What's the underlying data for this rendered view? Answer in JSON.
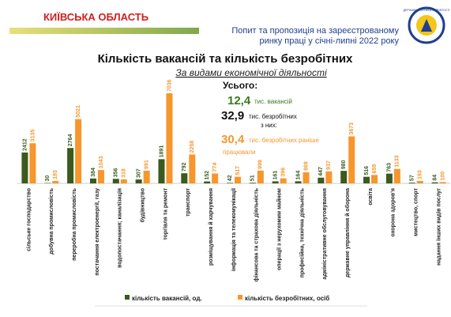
{
  "header": {
    "region": "КИЇВСЬКА ОБЛАСТЬ",
    "report_line1": "Попит та пропозиція на зареєстрованому",
    "report_line2": "ринку праці у  січні-липні 2022 року",
    "logo_text": "ДЕРЖАВНА СЛУЖБА ЗАЙНЯТОСТІ"
  },
  "summary": {
    "heading": "Усього:",
    "vacancies": "12,4",
    "vacancies_unit": "тис. вакансій",
    "unemployed": "32,9",
    "unemployed_unit": "тис. безробітних",
    "of_them": "з них:",
    "previously_worked": "30,4",
    "previously_worked_unit_line1": "тис. безробітних раніше",
    "previously_worked_unit_line2": "працювали"
  },
  "chart_data": {
    "type": "bar",
    "title": "Кількість вакансій та кількість безробітних",
    "subtitle": "За видами економічної діяльності",
    "categories": [
      "сільське господарство",
      "добувна промисловість",
      "переробна промисловість",
      "постачання електроенергії, газу",
      "водопостачання; каналізація",
      "будівництво",
      "торгівля та ремонт",
      "транспорт",
      "розміщування й харчування",
      "інформація та телекомунікації",
      "фінансова та страхова діяльність",
      "операції з нерухомим майном",
      "професійна, технічна діяльність",
      "адміністративне обслуговування",
      "державне управління й оборона",
      "освіта",
      "охорона здоров'я",
      "мистецтво, спорт",
      "надання інших видів послуг"
    ],
    "series": [
      {
        "name": "кількість вакансій, од.",
        "color": "#3a5a1e",
        "values": [
          2412,
          30,
          2764,
          384,
          356,
          307,
          1891,
          792,
          152,
          42,
          51,
          161,
          164,
          447,
          980,
          516,
          763,
          57,
          84
        ]
      },
      {
        "name": "кількість безробітних, осіб",
        "color": "#f7962d",
        "values": [
          3135,
          193,
          5021,
          1043,
          318,
          991,
          7036,
          2258,
          774,
          517,
          999,
          396,
          869,
          937,
          3673,
          659,
          1133,
          193,
          100
        ]
      }
    ],
    "legend": "bottom"
  }
}
